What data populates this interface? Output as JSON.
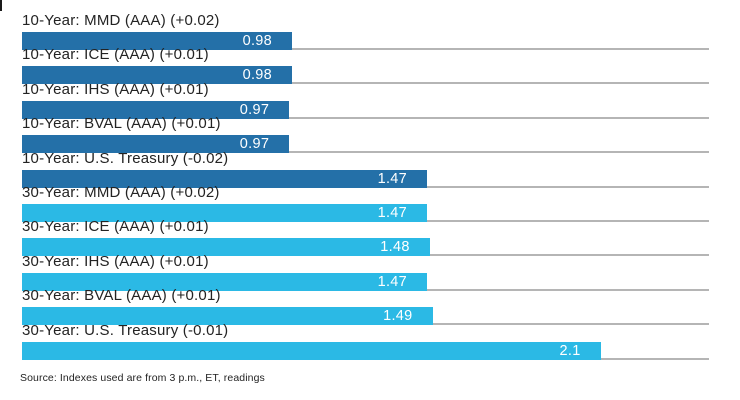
{
  "chart_data": {
    "type": "bar",
    "orientation": "horizontal",
    "title": "",
    "categories": [
      "10-Year: MMD (AAA) (+0.02)",
      "10-Year: ICE (AAA) (+0.01)",
      "10-Year: IHS (AAA) (+0.01)",
      "10-Year: BVAL (AAA) (+0.01)",
      "10-Year: U.S. Treasury (-0.02)",
      "30-Year: MMD (AAA) (+0.02)",
      "30-Year: ICE (AAA) (+0.01)",
      "30-Year: IHS (AAA) (+0.01)",
      "30-Year: BVAL (AAA) (+0.01)",
      "30-Year: U.S. Treasury (-0.01)"
    ],
    "values": [
      0.98,
      0.98,
      0.97,
      0.97,
      1.47,
      1.47,
      1.48,
      1.47,
      1.49,
      2.1
    ],
    "value_labels": [
      "0.98",
      "0.98",
      "0.97",
      "0.97",
      "1.47",
      "1.47",
      "1.48",
      "1.47",
      "1.49",
      "2.1"
    ],
    "groups": [
      "10-year",
      "10-year",
      "10-year",
      "10-year",
      "10-year",
      "30-year",
      "30-year",
      "30-year",
      "30-year",
      "30-year"
    ],
    "group_colors": {
      "10-year": "#2470a8",
      "30-year": "#2bb9e5"
    },
    "baseline_color": "#b5b5b5",
    "value_label_color": "#ffffff",
    "xlim": [
      0,
      2.49
    ],
    "grid": "per-row baseline only",
    "legend": "none",
    "source_note": "Source: Indexes used are from 3 p.m., ET, readings"
  }
}
